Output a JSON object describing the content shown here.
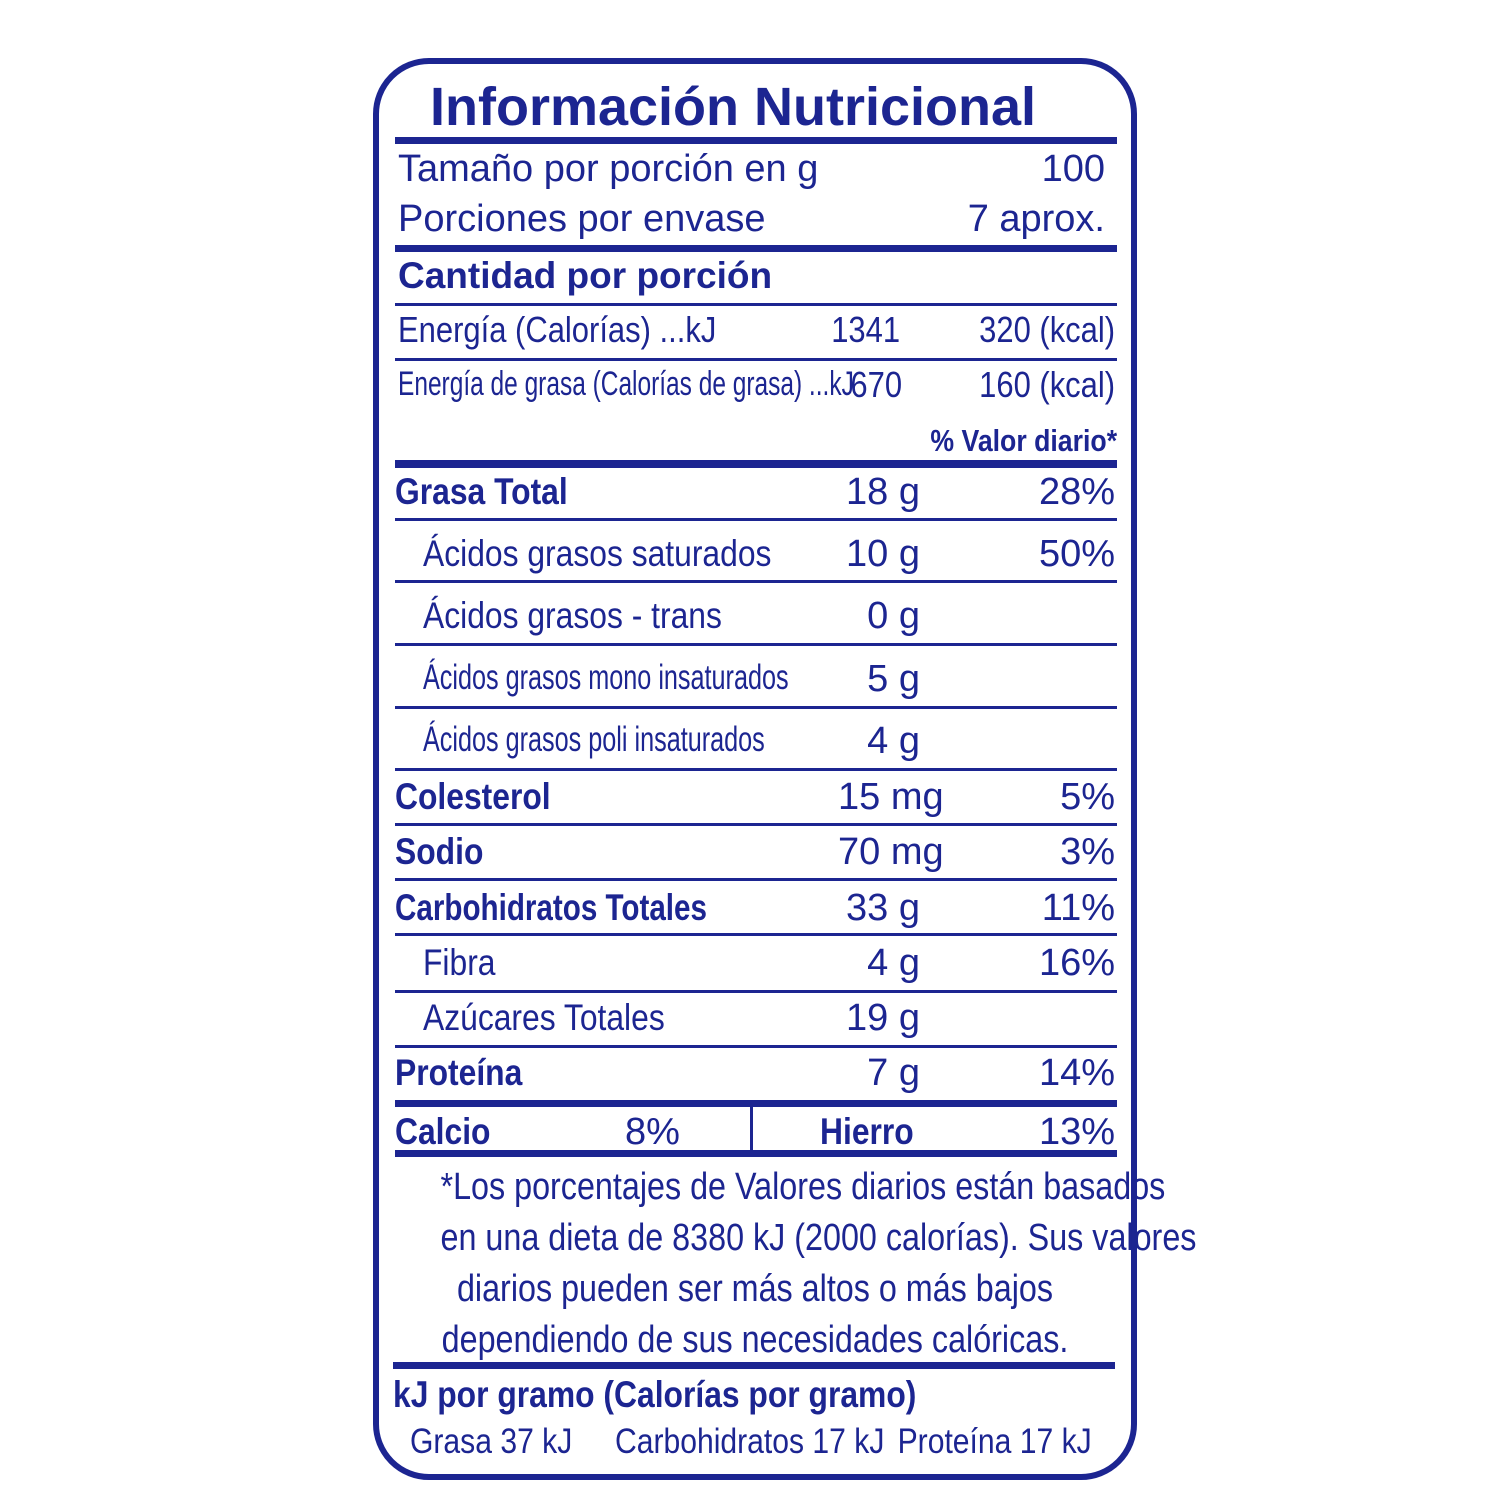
{
  "title": "Información Nutricional",
  "serving": {
    "size_label": "Tamaño por porción en g",
    "size_value": "100",
    "servings_label": "Porciones por envase",
    "servings_value": "7 aprox."
  },
  "amount_header": "Cantidad por porción",
  "energy": {
    "label": "Energía (Calorías) ...kJ",
    "kj": "1341",
    "kcal": "320 (kcal)",
    "fat_label": "Energía de grasa (Calorías de grasa) ...kJ",
    "fat_kj": "670",
    "fat_kcal": "160 (kcal)"
  },
  "dv_header": "% Valor diario*",
  "nutrients": [
    {
      "label": "Grasa Total",
      "amount": "18 g",
      "dv": "28%"
    },
    {
      "label": "Ácidos grasos saturados",
      "amount": "10 g",
      "dv": "50%"
    },
    {
      "label": "Ácidos grasos - trans",
      "amount": "0 g",
      "dv": ""
    },
    {
      "label": "Ácidos grasos mono insaturados",
      "amount": "5 g",
      "dv": ""
    },
    {
      "label": "Ácidos grasos poli insaturados",
      "amount": "4 g",
      "dv": ""
    },
    {
      "label": "Colesterol",
      "amount": "15 mg",
      "dv": "5%"
    },
    {
      "label": "Sodio",
      "amount": "70 mg",
      "dv": "3%"
    },
    {
      "label": "Carbohidratos Totales",
      "amount": "33 g",
      "dv": "11%"
    },
    {
      "label": "Fibra",
      "amount": "4 g",
      "dv": "16%"
    },
    {
      "label": "Azúcares Totales",
      "amount": "19 g",
      "dv": ""
    },
    {
      "label": "Proteína",
      "amount": "7 g",
      "dv": "14%"
    }
  ],
  "minerals": {
    "calcium_label": "Calcio",
    "calcium_dv": "8%",
    "iron_label": "Hierro",
    "iron_dv": "13%"
  },
  "footnote": [
    "*Los porcentajes de Valores diarios están basados",
    "en una dieta de 8380 kJ (2000 calorías). Sus valores",
    "diarios pueden ser más altos o más bajos",
    "dependiendo de sus necesidades calóricas."
  ],
  "per_gram": {
    "header": "kJ por gramo (Calorías por gramo)",
    "fat": "Grasa 37 kJ",
    "carbs": "Carbohidratos 17 kJ",
    "protein": "Proteína 17 kJ"
  },
  "colors": {
    "ink": "#1c2591",
    "background": "#ffffff"
  }
}
